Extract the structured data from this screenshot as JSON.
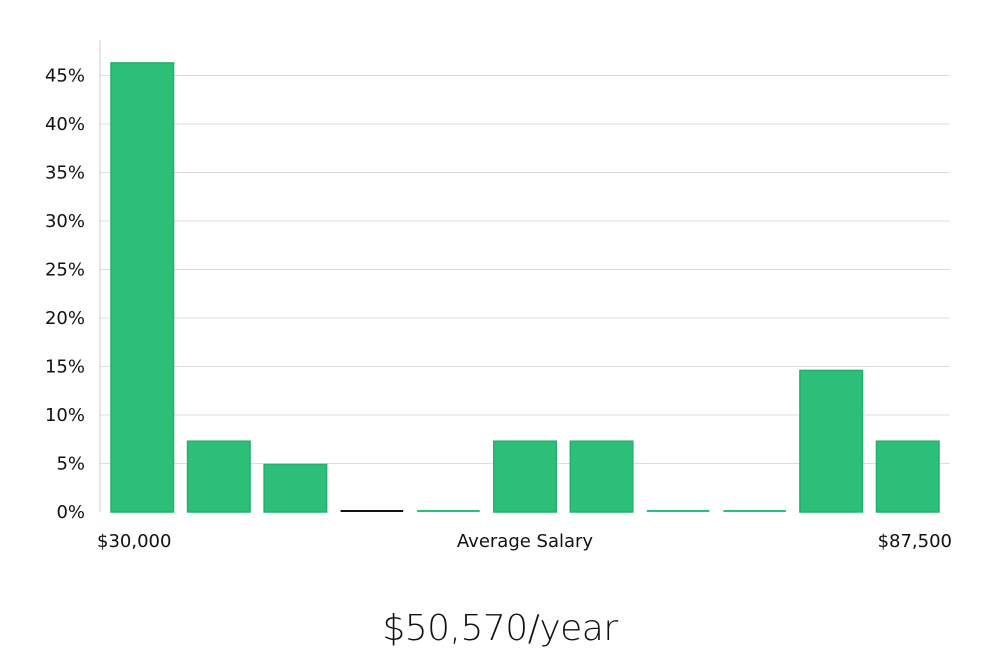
{
  "chart_data": {
    "type": "bar",
    "title": "",
    "xlabel": "Average Salary",
    "ylabel": "",
    "x_range_labels": {
      "min": "$30,000",
      "max": "$87,500"
    },
    "y_ticks": [
      "0%",
      "5%",
      "10%",
      "15%",
      "20%",
      "25%",
      "30%",
      "35%",
      "40%",
      "45%"
    ],
    "ylim": [
      0,
      47
    ],
    "grid": true,
    "legend": "none",
    "bar_color": "#2bbf78",
    "zero_bar_colors": [
      "#2bbf78",
      "#2bbf78",
      "#2bbf78",
      "#111111",
      "#2bbf78",
      "#2bbf78",
      "#2bbf78",
      "#2bbf78",
      "#2bbf78",
      "#2bbf78",
      "#2bbf78"
    ],
    "values": [
      46.3,
      7.3,
      4.9,
      0,
      0,
      7.3,
      7.3,
      0,
      0,
      14.6,
      7.3
    ]
  },
  "summary": {
    "average_text": "$50,570/year"
  }
}
